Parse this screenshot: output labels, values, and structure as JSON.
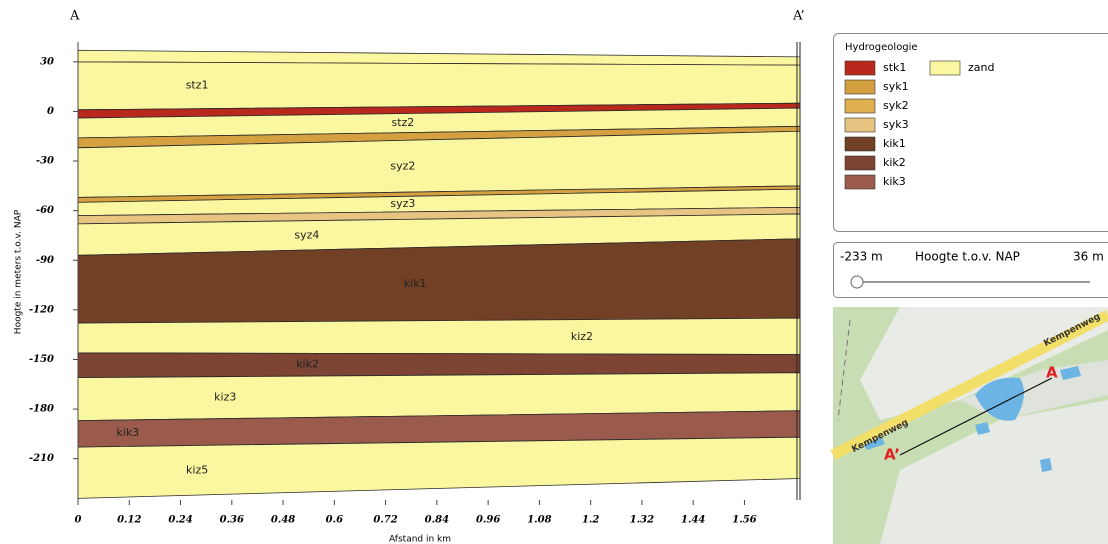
{
  "chart_data": {
    "type": "cross-section",
    "annotations": {
      "start": "A",
      "end": "A’"
    },
    "y_label": "Hoogte in meters t.o.v. NAP",
    "x_label": "Afstand in km",
    "xlim": [
      0,
      1.69
    ],
    "ylim": [
      -235,
      42
    ],
    "xticks": [
      0,
      0.12,
      0.24,
      0.36,
      0.48,
      0.6,
      0.72,
      0.84,
      0.96,
      1.08,
      1.2,
      1.32,
      1.44,
      1.56
    ],
    "yticks": [
      30,
      0,
      -30,
      -60,
      -90,
      -120,
      -150,
      -180,
      -210
    ],
    "x": [
      0,
      1.69
    ],
    "layers": [
      {
        "color": "#fbf7a0",
        "top": [
          37,
          33
        ],
        "bottom": [
          30,
          28
        ]
      },
      {
        "label": "stz1",
        "color": "#fbf7a0",
        "top": [
          30,
          28
        ],
        "bottom": [
          1,
          5
        ]
      },
      {
        "color": "#b8281c",
        "top": [
          1,
          5
        ],
        "bottom": [
          -4,
          2
        ]
      },
      {
        "label": "stz2",
        "color": "#fbf7a0",
        "top": [
          -4,
          2
        ],
        "bottom": [
          -16,
          -9
        ]
      },
      {
        "color": "#d4a040",
        "top": [
          -16,
          -9
        ],
        "bottom": [
          -22,
          -12
        ]
      },
      {
        "label": "syz2",
        "color": "#fbf7a0",
        "top": [
          -22,
          -12
        ],
        "bottom": [
          -52,
          -45
        ]
      },
      {
        "color": "#d4a040",
        "top": [
          -52,
          -45
        ],
        "bottom": [
          -55,
          -47
        ]
      },
      {
        "label": "syz3",
        "color": "#fbf7a0",
        "top": [
          -55,
          -47
        ],
        "bottom": [
          -63,
          -58
        ]
      },
      {
        "color": "#e8c482",
        "top": [
          -63,
          -58
        ],
        "bottom": [
          -68,
          -62
        ]
      },
      {
        "label": "syz4",
        "color": "#fbf7a0",
        "top": [
          -68,
          -62
        ],
        "bottom": [
          -87,
          -77
        ]
      },
      {
        "label": "kik1",
        "color": "#724024",
        "top": [
          -87,
          -77
        ],
        "bottom": [
          -128,
          -125
        ]
      },
      {
        "label": "kiz2",
        "color": "#fbf7a0",
        "top": [
          -128,
          -125
        ],
        "bottom": [
          -146,
          -147
        ]
      },
      {
        "label": "kik2",
        "color": "#7d4433",
        "top": [
          -146,
          -147
        ],
        "bottom": [
          -161,
          -158
        ]
      },
      {
        "label": "kiz3",
        "color": "#fbf7a0",
        "top": [
          -161,
          -158
        ],
        "bottom": [
          -187,
          -181
        ]
      },
      {
        "label": "kik3",
        "color": "#9a5a4c",
        "top": [
          -187,
          -181
        ],
        "bottom": [
          -203,
          -197
        ]
      },
      {
        "label": "kiz5",
        "color": "#fbf7a0",
        "top": [
          -203,
          -197
        ],
        "bottom": [
          -234,
          -222
        ]
      }
    ]
  },
  "legend": {
    "title": "Hydrogeologie",
    "items": [
      {
        "name": "stk1",
        "color": "#b8281c"
      },
      {
        "name": "syk1",
        "color": "#d4a040"
      },
      {
        "name": "syk2",
        "color": "#e0b050"
      },
      {
        "name": "syk3",
        "color": "#e8c482"
      },
      {
        "name": "kik1",
        "color": "#724024"
      },
      {
        "name": "kik2",
        "color": "#7d4433"
      },
      {
        "name": "kik3",
        "color": "#9a5a4c"
      },
      {
        "name": "zand",
        "color": "#fbf7a0"
      }
    ]
  },
  "slider": {
    "min_label": "-233 m",
    "title": "Hoogte t.o.v. NAP",
    "max_label": "36 m"
  },
  "map": {
    "road_labels": [
      "Kempenweg",
      "Kempenweg"
    ],
    "point_a": "A",
    "point_a_prime": "A’"
  }
}
